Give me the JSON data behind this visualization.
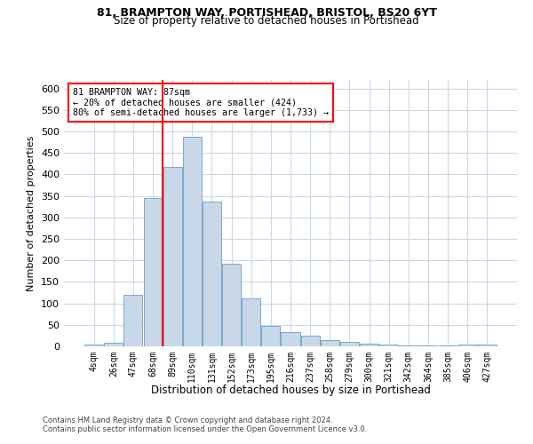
{
  "title1": "81, BRAMPTON WAY, PORTISHEAD, BRISTOL, BS20 6YT",
  "title2": "Size of property relative to detached houses in Portishead",
  "xlabel": "Distribution of detached houses by size in Portishead",
  "ylabel": "Number of detached properties",
  "footer1": "Contains HM Land Registry data © Crown copyright and database right 2024.",
  "footer2": "Contains public sector information licensed under the Open Government Licence v3.0.",
  "annotation_line1": "81 BRAMPTON WAY: 87sqm",
  "annotation_line2": "← 20% of detached houses are smaller (424)",
  "annotation_line3": "80% of semi-detached houses are larger (1,733) →",
  "bar_categories": [
    "4sqm",
    "26sqm",
    "47sqm",
    "68sqm",
    "89sqm",
    "110sqm",
    "131sqm",
    "152sqm",
    "173sqm",
    "195sqm",
    "216sqm",
    "237sqm",
    "258sqm",
    "279sqm",
    "300sqm",
    "321sqm",
    "342sqm",
    "364sqm",
    "385sqm",
    "406sqm",
    "427sqm"
  ],
  "bar_values": [
    4,
    8,
    120,
    345,
    418,
    487,
    337,
    192,
    111,
    48,
    34,
    25,
    15,
    10,
    7,
    4,
    2,
    3,
    2,
    4,
    5
  ],
  "bar_color": "#c8d8e8",
  "bar_edge_color": "#7aa8cc",
  "red_line_index": 4,
  "ylim": [
    0,
    620
  ],
  "yticks": [
    0,
    50,
    100,
    150,
    200,
    250,
    300,
    350,
    400,
    450,
    500,
    550,
    600
  ],
  "background_color": "#ffffff",
  "grid_color": "#c8d9e8"
}
